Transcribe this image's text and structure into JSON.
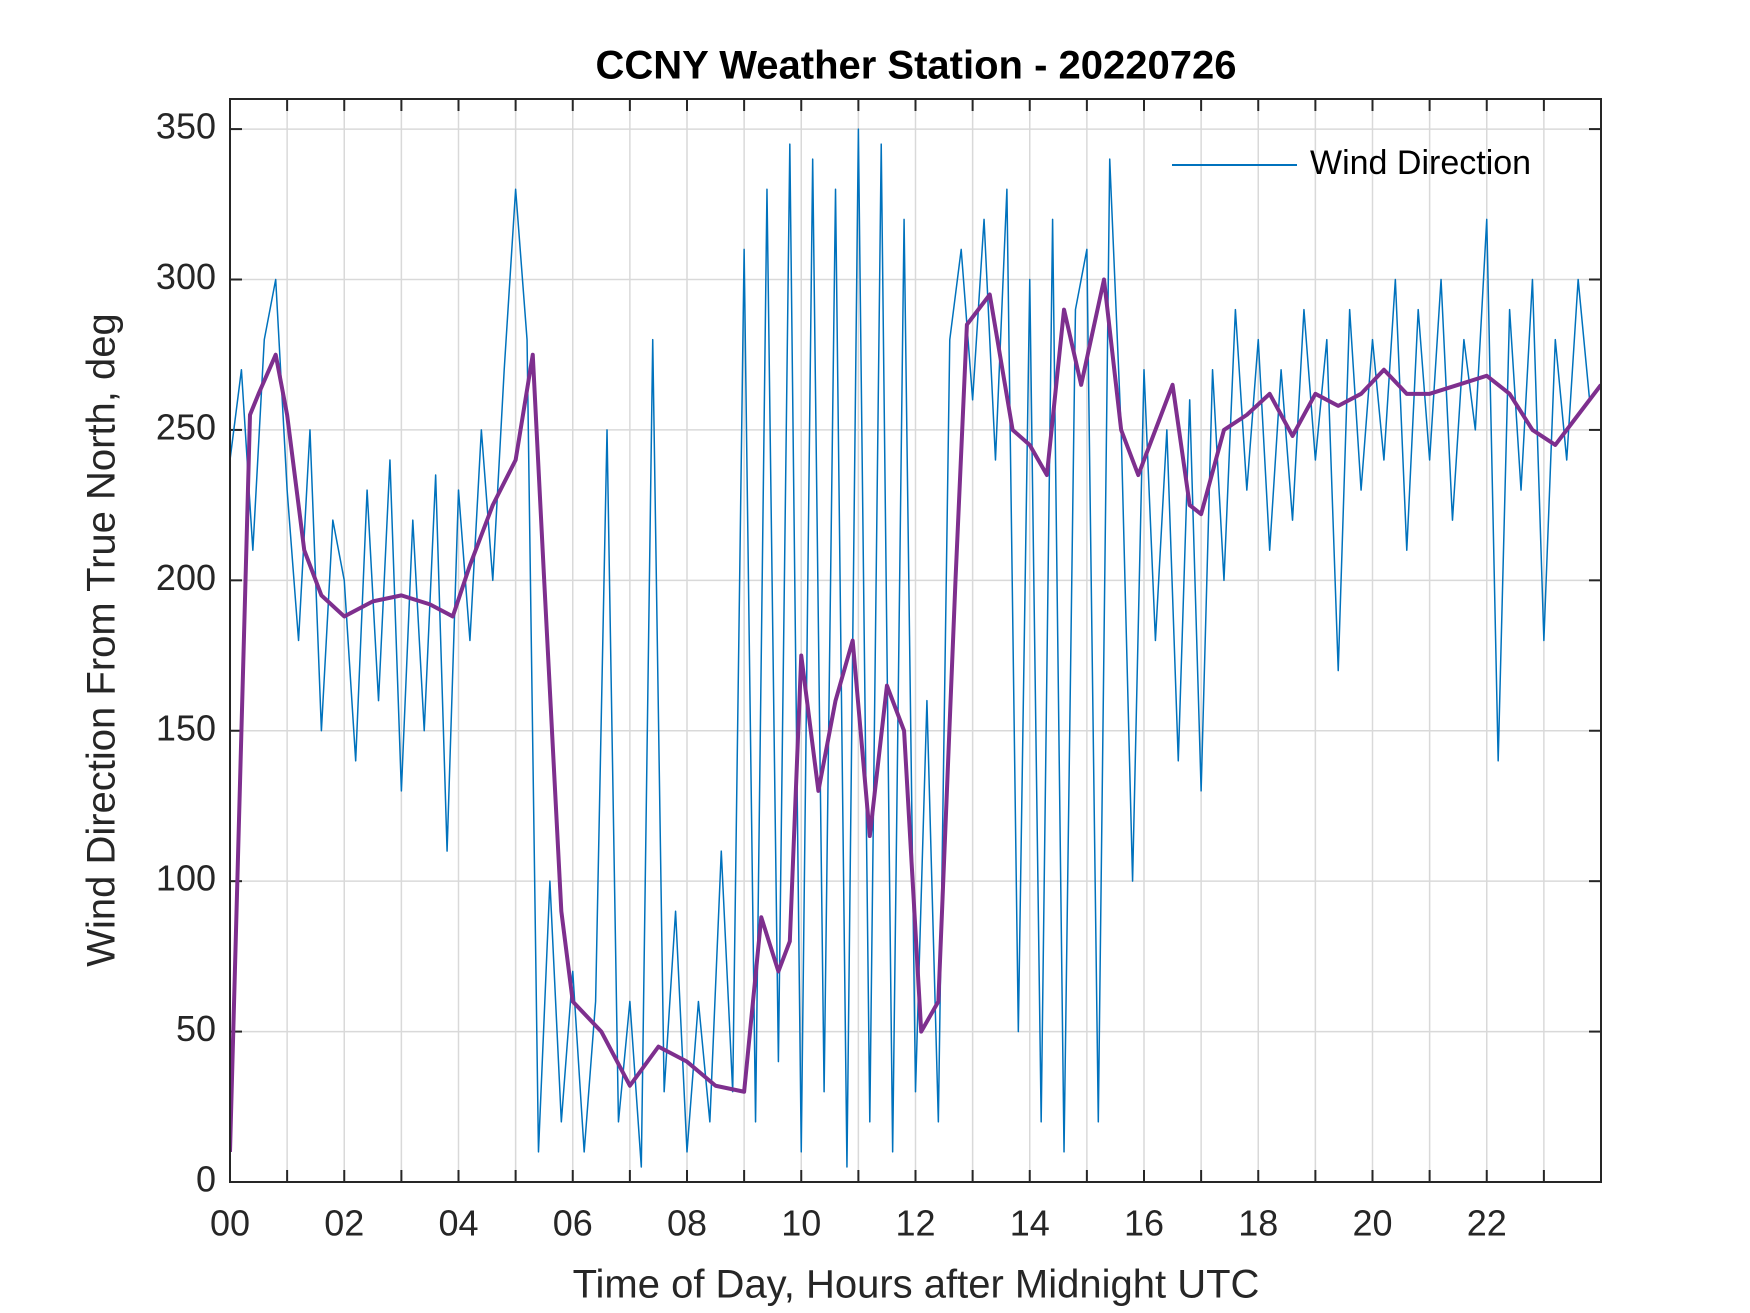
{
  "chart_data": {
    "type": "line",
    "title": "CCNY Weather Station - 20220726",
    "xlabel": "Time of Day, Hours after Midnight UTC",
    "ylabel": "Wind Direction From True North, deg",
    "xlim": [
      0,
      24
    ],
    "ylim": [
      0,
      360
    ],
    "xticks": [
      {
        "value": 0,
        "label": "00"
      },
      {
        "value": 2,
        "label": "02"
      },
      {
        "value": 4,
        "label": "04"
      },
      {
        "value": 6,
        "label": "06"
      },
      {
        "value": 8,
        "label": "08"
      },
      {
        "value": 10,
        "label": "10"
      },
      {
        "value": 12,
        "label": "12"
      },
      {
        "value": 14,
        "label": "14"
      },
      {
        "value": 16,
        "label": "16"
      },
      {
        "value": 18,
        "label": "18"
      },
      {
        "value": 20,
        "label": "20"
      },
      {
        "value": 22,
        "label": "22"
      }
    ],
    "xminorticks": [
      1,
      3,
      5,
      7,
      9,
      11,
      13,
      15,
      17,
      19,
      21,
      23
    ],
    "yticks": [
      0,
      50,
      100,
      150,
      200,
      250,
      300,
      350
    ],
    "grid": true,
    "legend": "upper right",
    "series": [
      {
        "name": "Wind Direction",
        "color": "#0072bd",
        "width": 1.5,
        "x": [
          0,
          0.2,
          0.4,
          0.6,
          0.8,
          1,
          1.2,
          1.4,
          1.6,
          1.8,
          2,
          2.2,
          2.4,
          2.6,
          2.8,
          3,
          3.2,
          3.4,
          3.6,
          3.8,
          4,
          4.2,
          4.4,
          4.6,
          4.8,
          5,
          5.2,
          5.4,
          5.6,
          5.8,
          6,
          6.2,
          6.4,
          6.6,
          6.8,
          7,
          7.2,
          7.4,
          7.6,
          7.8,
          8,
          8.2,
          8.4,
          8.6,
          8.8,
          9,
          9.2,
          9.4,
          9.6,
          9.8,
          10,
          10.2,
          10.4,
          10.6,
          10.8,
          11,
          11.2,
          11.4,
          11.6,
          11.8,
          12,
          12.2,
          12.4,
          12.6,
          12.8,
          13,
          13.2,
          13.4,
          13.6,
          13.8,
          14,
          14.2,
          14.4,
          14.6,
          14.8,
          15,
          15.2,
          15.4,
          15.6,
          15.8,
          16,
          16.2,
          16.4,
          16.6,
          16.8,
          17,
          17.2,
          17.4,
          17.6,
          17.8,
          18,
          18.2,
          18.4,
          18.6,
          18.8,
          19,
          19.2,
          19.4,
          19.6,
          19.8,
          20,
          20.2,
          20.4,
          20.6,
          20.8,
          21,
          21.2,
          21.4,
          21.6,
          21.8,
          22,
          22.2,
          22.4,
          22.6,
          22.8,
          23,
          23.2,
          23.4,
          23.6,
          23.8
        ],
        "values": [
          240,
          270,
          210,
          280,
          300,
          230,
          180,
          250,
          150,
          220,
          200,
          140,
          230,
          160,
          240,
          130,
          220,
          150,
          235,
          110,
          230,
          180,
          250,
          200,
          270,
          330,
          280,
          10,
          100,
          20,
          70,
          10,
          60,
          250,
          20,
          60,
          5,
          280,
          30,
          90,
          10,
          60,
          20,
          110,
          30,
          310,
          20,
          330,
          40,
          345,
          10,
          340,
          30,
          330,
          5,
          350,
          20,
          345,
          10,
          320,
          30,
          160,
          20,
          280,
          310,
          260,
          320,
          240,
          330,
          50,
          300,
          20,
          320,
          10,
          290,
          310,
          20,
          340,
          250,
          100,
          270,
          180,
          250,
          140,
          260,
          130,
          270,
          200,
          290,
          230,
          280,
          210,
          270,
          220,
          290,
          240,
          280,
          170,
          290,
          230,
          280,
          240,
          300,
          210,
          290,
          240,
          300,
          220,
          280,
          250,
          320,
          140,
          290,
          230,
          300,
          180,
          280,
          240,
          300,
          260
        ]
      },
      {
        "color": "#7e2f8e",
        "width": 4,
        "x": [
          0,
          0.35,
          0.5,
          0.8,
          1,
          1.3,
          1.6,
          2,
          2.5,
          3,
          3.5,
          3.9,
          4.2,
          4.6,
          5,
          5.3,
          5.5,
          5.8,
          6,
          6.5,
          7,
          7.5,
          8,
          8.5,
          9,
          9.3,
          9.6,
          9.8,
          10,
          10.3,
          10.6,
          10.9,
          11.2,
          11.5,
          11.8,
          12.1,
          12.4,
          12.7,
          12.9,
          13.3,
          13.7,
          14,
          14.3,
          14.6,
          14.9,
          15.3,
          15.6,
          15.9,
          16.3,
          16.5,
          16.8,
          17,
          17.4,
          17.8,
          18.2,
          18.6,
          19,
          19.4,
          19.8,
          20.2,
          20.6,
          21,
          21.5,
          22,
          22.4,
          22.8,
          23.2,
          23.6,
          24
        ],
        "values": [
          10,
          255,
          262,
          275,
          255,
          210,
          195,
          188,
          193,
          195,
          192,
          188,
          205,
          225,
          240,
          275,
          200,
          90,
          60,
          50,
          32,
          45,
          40,
          32,
          30,
          88,
          70,
          80,
          175,
          130,
          160,
          180,
          115,
          165,
          150,
          50,
          60,
          200,
          285,
          295,
          250,
          245,
          235,
          290,
          265,
          300,
          250,
          235,
          255,
          265,
          225,
          222,
          250,
          255,
          262,
          248,
          262,
          258,
          262,
          270,
          262,
          262,
          265,
          268,
          262,
          250,
          245,
          255,
          265
        ]
      }
    ]
  }
}
